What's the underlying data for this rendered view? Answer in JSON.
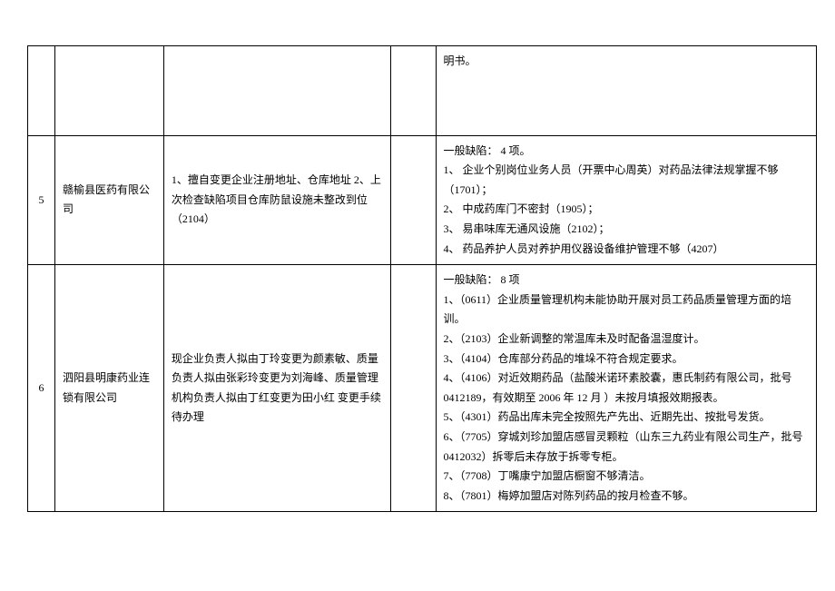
{
  "rows": [
    {
      "num": "",
      "company": "",
      "issue": "",
      "empty": "",
      "defects": "明书。"
    },
    {
      "num": "5",
      "company": "赣榆县医药有限公司",
      "issue": "1、擅自变更企业注册地址、仓库地址 2、上次检查缺陷项目仓库防鼠设施未整改到位（2104）",
      "empty": "",
      "defects": "一般缺陷：  4 项。\n1、 企业个别岗位业务人员（开票中心周英）对药品法律法规掌握不够（1701）；\n2、 中成药库门不密封（1905）；\n3、 易串味库无通风设施（2102）；\n4、 药品养护人员对养护用仪器设备维护管理不够（4207）"
    },
    {
      "num": "6",
      "company": "泗阳县明康药业连锁有限公司",
      "issue": "现企业负责人拟由丁玲变更为颜素敏、质量负责人拟由张彩玲变更为刘海峰、质量管理机构负责人拟由丁红变更为田小红   变更手续待办理",
      "empty": "",
      "defects": "一般缺陷：  8 项\n1、（0611）企业质量管理机构未能协助开展对员工药品质量管理方面的培训。\n2、（2103）企业新调整的常温库未及时配备温湿度计。\n3、（4104）仓库部分药品的堆垛不符合规定要求。\n4、（4106）对近效期药品（盐酸米诺环素胶囊，惠氏制药有限公司，批号 0412189，有效期至 2006 年 12 月  ）未按月填报效期报表。\n5、（4301）药品出库未完全按照先产先出、近期先出、按批号发货。\n6、（7705）穿城刘珍加盟店感冒灵颗粒（山东三九药业有限公司生产，批号 0412032）拆零后未存放于拆零专柜。\n7、（7708）丁嘴康宁加盟店橱窗不够清洁。\n8、（7801）梅婷加盟店对陈列药品的按月检查不够。"
    }
  ],
  "styling": {
    "font_family": "SimSun",
    "font_size_pt": 12,
    "border_color": "#000000",
    "background_color": "#ffffff",
    "text_color": "#000000",
    "line_height": 1.8
  }
}
